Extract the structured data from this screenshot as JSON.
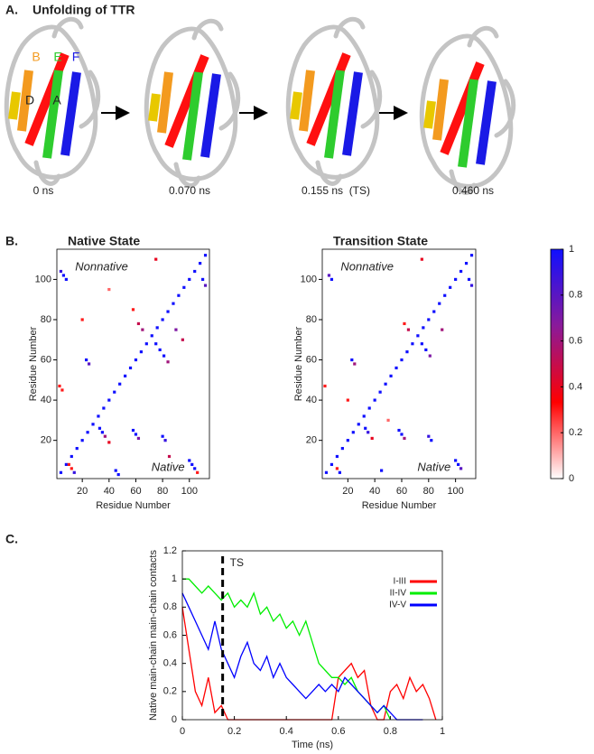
{
  "panel_labels": [
    "A.",
    "B.",
    "C."
  ],
  "panel_a": {
    "title": "Unfolding of TTR",
    "strand_labels": [
      "B",
      "E",
      "F",
      "D",
      "A"
    ],
    "snapshots": [
      "0 ns",
      "0.070 ns",
      "0.155 ns  (TS)",
      "0.460 ns"
    ]
  },
  "chart_data": [
    {
      "type": "contact-map",
      "title": "Native State",
      "xlabel": "Residue Number",
      "ylabel": "Residue Number",
      "annotations": [
        "Nonnative",
        "Native"
      ],
      "xlim": [
        1,
        115
      ],
      "ylim": [
        1,
        115
      ],
      "xticks": [
        20,
        40,
        60,
        80,
        100
      ],
      "yticks": [
        20,
        40,
        60,
        80,
        100
      ],
      "colormap": [
        "#ffffff",
        "#ff0000",
        "#8a1a9a",
        "#1010ff"
      ],
      "clim": [
        0,
        1
      ],
      "x": [
        4,
        8,
        12,
        16,
        20,
        24,
        28,
        32,
        36,
        40,
        44,
        48,
        52,
        56,
        60,
        64,
        68,
        72,
        76,
        80,
        84,
        88,
        92,
        96,
        100,
        104,
        108,
        112,
        10,
        12,
        14,
        33,
        35,
        37,
        40,
        45,
        47,
        58,
        60,
        62,
        80,
        82,
        85,
        100,
        102,
        104,
        106,
        75,
        78,
        81,
        84,
        110,
        112,
        5,
        3,
        25,
        23,
        20,
        8,
        6,
        4,
        65,
        62,
        58,
        40,
        75,
        90,
        95
      ],
      "y": [
        4,
        8,
        12,
        16,
        20,
        24,
        28,
        32,
        36,
        40,
        44,
        48,
        52,
        56,
        60,
        64,
        68,
        72,
        76,
        80,
        84,
        88,
        92,
        96,
        100,
        104,
        108,
        112,
        8,
        6,
        4,
        26,
        24,
        22,
        19,
        5,
        3,
        25,
        23,
        21,
        22,
        20,
        12,
        10,
        8,
        6,
        4,
        68,
        65,
        62,
        59,
        100,
        97,
        45,
        47,
        58,
        60,
        80,
        100,
        102,
        104,
        75,
        78,
        85,
        95,
        110,
        75,
        70
      ],
      "values": [
        1,
        1,
        1,
        1,
        1,
        1,
        1,
        1,
        1,
        1,
        1,
        1,
        1,
        1,
        1,
        1,
        1,
        1,
        1,
        1,
        1,
        1,
        1,
        1,
        1,
        1,
        1,
        1,
        0.3,
        0.3,
        0.9,
        1,
        1,
        0.6,
        0.4,
        1,
        1,
        1,
        1,
        0.7,
        1,
        0.9,
        0.5,
        1,
        1,
        1,
        0.3,
        1,
        1,
        1,
        0.6,
        1,
        0.8,
        0.3,
        0.3,
        0.8,
        1,
        0.3,
        1,
        1,
        0.9,
        0.6,
        0.5,
        0.3,
        0.2,
        0.4,
        0.7,
        0.5
      ]
    },
    {
      "type": "contact-map",
      "title": "Transition State",
      "xlabel": "Residue Number",
      "ylabel": "Residue Number",
      "annotations": [
        "Nonnative",
        "Native"
      ],
      "xlim": [
        1,
        115
      ],
      "ylim": [
        1,
        115
      ],
      "xticks": [
        20,
        40,
        60,
        80,
        100
      ],
      "yticks": [
        20,
        40,
        60,
        80,
        100
      ],
      "colormap": [
        "#ffffff",
        "#ff0000",
        "#8a1a9a",
        "#1010ff"
      ],
      "clim": [
        0,
        1
      ],
      "colorbar_ticks": [
        0,
        0.2,
        0.4,
        0.6,
        0.8,
        1
      ],
      "x": [
        4,
        8,
        12,
        16,
        20,
        24,
        28,
        32,
        36,
        40,
        44,
        48,
        52,
        56,
        60,
        64,
        68,
        72,
        76,
        80,
        84,
        88,
        92,
        96,
        100,
        104,
        108,
        112,
        12,
        14,
        33,
        35,
        38,
        45,
        58,
        60,
        62,
        80,
        82,
        100,
        102,
        104,
        75,
        78,
        81,
        110,
        112,
        3,
        25,
        23,
        8,
        6,
        65,
        62,
        75,
        90,
        20,
        50
      ],
      "y": [
        4,
        8,
        12,
        16,
        20,
        24,
        28,
        32,
        36,
        40,
        44,
        48,
        52,
        56,
        60,
        64,
        68,
        72,
        76,
        80,
        84,
        88,
        92,
        96,
        100,
        104,
        108,
        112,
        6,
        4,
        26,
        24,
        21,
        5,
        25,
        23,
        21,
        22,
        20,
        10,
        8,
        6,
        68,
        65,
        62,
        100,
        97,
        47,
        58,
        60,
        100,
        102,
        75,
        78,
        110,
        75,
        40,
        30
      ],
      "values": [
        1,
        1,
        1,
        1,
        1,
        1,
        1,
        1,
        1,
        1,
        1,
        1,
        1,
        1,
        1,
        1,
        1,
        1,
        1,
        1,
        1,
        1,
        1,
        1,
        1,
        1,
        1,
        1,
        0.3,
        1,
        1,
        0.9,
        0.4,
        1,
        1,
        1,
        0.6,
        0.9,
        1,
        1,
        1,
        0.8,
        1,
        1,
        0.7,
        1,
        0.9,
        0.3,
        0.6,
        1,
        1,
        0.8,
        0.5,
        0.3,
        0.4,
        0.6,
        0.3,
        0.2
      ]
    },
    {
      "type": "line",
      "xlabel": "Time (ns)",
      "ylabel": "Native main-chain main-chain contacts",
      "xlim": [
        0,
        1
      ],
      "ylim": [
        0,
        1.2
      ],
      "xticks": [
        0,
        0.2,
        0.4,
        0.6,
        0.8,
        1
      ],
      "yticks": [
        0,
        0.2,
        0.4,
        0.6,
        0.8,
        1,
        1.2
      ],
      "legend": "upper right",
      "vline": {
        "x": 0.155,
        "label": "TS"
      },
      "x": [
        0,
        0.025,
        0.05,
        0.075,
        0.1,
        0.125,
        0.15,
        0.175,
        0.2,
        0.225,
        0.25,
        0.275,
        0.3,
        0.325,
        0.35,
        0.375,
        0.4,
        0.425,
        0.45,
        0.475,
        0.5,
        0.525,
        0.55,
        0.575,
        0.6,
        0.625,
        0.65,
        0.675,
        0.7,
        0.725,
        0.75,
        0.775,
        0.8,
        0.825,
        0.85,
        0.875,
        0.9,
        0.925,
        0.95,
        0.975,
        1
      ],
      "series": [
        {
          "name": "I-III",
          "color": "#ff0000",
          "values": [
            0.8,
            0.5,
            0.2,
            0.1,
            0.3,
            0.05,
            0.1,
            0,
            0,
            0,
            0,
            0,
            0,
            0,
            0,
            0,
            0,
            0,
            0,
            0,
            0,
            0,
            0,
            0,
            0.3,
            0.35,
            0.4,
            0.3,
            0.35,
            0.1,
            0,
            0,
            0.2,
            0.25,
            0.15,
            0.3,
            0.2,
            0.25,
            0.15,
            0,
            null
          ]
        },
        {
          "name": "II-IV",
          "color": "#00ee00",
          "values": [
            1,
            1,
            0.95,
            0.9,
            0.95,
            0.9,
            0.85,
            0.9,
            0.8,
            0.85,
            0.8,
            0.9,
            0.75,
            0.8,
            0.7,
            0.75,
            0.65,
            0.7,
            0.6,
            0.7,
            0.55,
            0.4,
            0.35,
            0.3,
            0.3,
            0.25,
            0.3,
            0.2,
            0.15,
            0.1,
            0.05,
            0.1,
            0,
            null,
            null,
            null,
            null,
            null,
            null,
            null,
            null
          ]
        },
        {
          "name": "IV-V",
          "color": "#0000ff",
          "values": [
            0.9,
            0.8,
            0.7,
            0.6,
            0.5,
            0.7,
            0.5,
            0.4,
            0.3,
            0.45,
            0.55,
            0.4,
            0.35,
            0.45,
            0.3,
            0.4,
            0.3,
            0.25,
            0.2,
            0.15,
            0.2,
            0.25,
            0.2,
            0.25,
            0.2,
            0.3,
            0.25,
            0.2,
            0.15,
            0.1,
            0.05,
            0.1,
            0.05,
            0,
            0,
            0,
            0,
            0,
            null,
            null,
            null
          ]
        }
      ]
    }
  ]
}
